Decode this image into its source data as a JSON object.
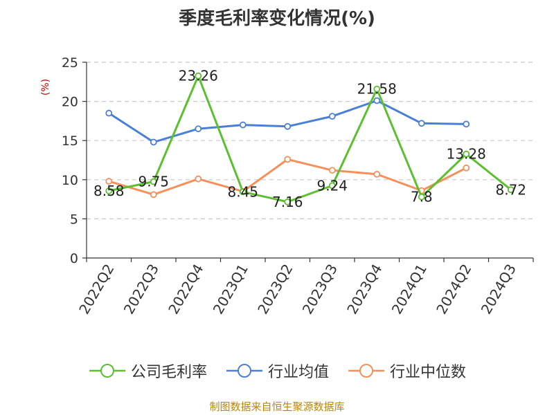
{
  "title": "季度毛利率变化情况(%)",
  "y_unit": "(%)",
  "source": "制图数据来自恒生聚源数据库",
  "chart_data": {
    "type": "line",
    "categories": [
      "2022Q2",
      "2022Q3",
      "2022Q4",
      "2023Q1",
      "2023Q2",
      "2023Q3",
      "2023Q4",
      "2024Q1",
      "2024Q2",
      "2024Q3"
    ],
    "ylim": [
      0,
      25
    ],
    "yticks": [
      0,
      5,
      10,
      15,
      20,
      25
    ],
    "grid": true,
    "legend_position": "bottom",
    "series": [
      {
        "name": "公司毛利率",
        "color": "#5ac02e",
        "values": [
          8.58,
          9.75,
          23.26,
          8.45,
          7.16,
          9.24,
          21.58,
          7.8,
          13.28,
          8.72
        ],
        "labels": [
          "8.58",
          "9.75",
          "23.26",
          "8.45",
          "7.16",
          "9.24",
          "21.58",
          "7.8",
          "13.28",
          "8.72"
        ]
      },
      {
        "name": "行业均值",
        "color": "#4a7fd8",
        "values": [
          18.5,
          14.8,
          16.5,
          17.0,
          16.8,
          18.1,
          20.1,
          17.2,
          17.1,
          null
        ]
      },
      {
        "name": "行业中位数",
        "color": "#f5905a",
        "values": [
          9.8,
          8.1,
          10.1,
          8.5,
          12.6,
          11.2,
          10.7,
          8.6,
          11.5,
          null
        ]
      }
    ]
  }
}
